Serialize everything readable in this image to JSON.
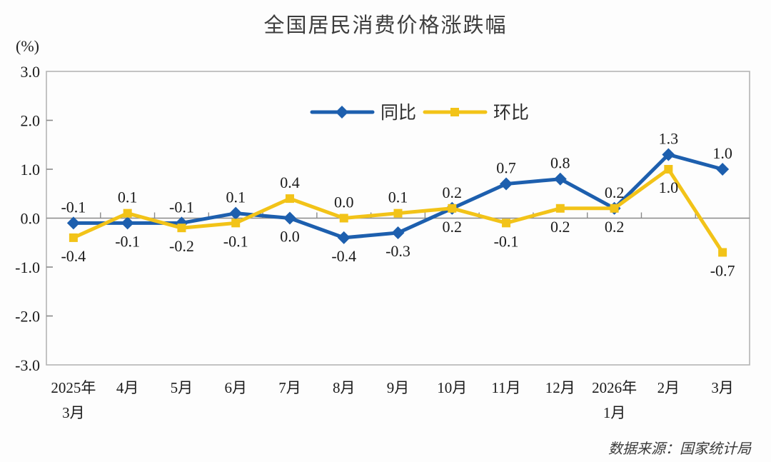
{
  "title": "全国居民消费价格涨跌幅",
  "unit_label": "(%)",
  "source_label": "数据来源：国家统计局",
  "colors": {
    "yoy_blue": "#1D5FAE",
    "mom_yellow": "#F2C318",
    "axis_gray": "#8a8a8a",
    "border_gray": "#b5b5b5",
    "text_dark": "#1a1a1a"
  },
  "chart_data": {
    "type": "line",
    "title": "全国居民消费价格涨跌幅",
    "ylabel": "(%)",
    "ylim": [
      -3.0,
      3.0
    ],
    "ytick_labels": [
      "3.0",
      "2.0",
      "1.0",
      "0.0",
      "-1.0",
      "-2.0",
      "-3.0"
    ],
    "ytick_values": [
      3,
      2,
      1,
      0,
      -1,
      -2,
      -3
    ],
    "grid": false,
    "legend_position": "top-center-inside",
    "categories": [
      [
        "2025年",
        "3月"
      ],
      [
        "4月"
      ],
      [
        "5月"
      ],
      [
        "6月"
      ],
      [
        "7月"
      ],
      [
        "8月"
      ],
      [
        "9月"
      ],
      [
        "10月"
      ],
      [
        "11月"
      ],
      [
        "12月"
      ],
      [
        "2026年",
        "1月"
      ],
      [
        "2月"
      ],
      [
        "3月"
      ]
    ],
    "series": [
      {
        "id": "yoy",
        "name": "同比",
        "color": "#1D5FAE",
        "marker": "diamond",
        "values": [
          -0.1,
          -0.1,
          -0.1,
          0.1,
          0.0,
          -0.4,
          -0.3,
          0.2,
          0.7,
          0.8,
          0.2,
          1.3,
          1.0
        ],
        "label_side": [
          "above",
          "below",
          "above",
          "above",
          "below",
          "below",
          "below",
          "above",
          "above",
          "above",
          "above",
          "above",
          "above"
        ]
      },
      {
        "id": "mom",
        "name": "环比",
        "color": "#F2C318",
        "marker": "square",
        "values": [
          -0.4,
          0.1,
          -0.2,
          -0.1,
          0.4,
          0.0,
          0.1,
          0.2,
          -0.1,
          0.2,
          0.2,
          1.0,
          -0.7
        ],
        "label_side": [
          "below",
          "above",
          "below",
          "below",
          "above",
          "above",
          "above",
          "below",
          "below",
          "below",
          "below",
          "below",
          "below"
        ]
      }
    ]
  }
}
